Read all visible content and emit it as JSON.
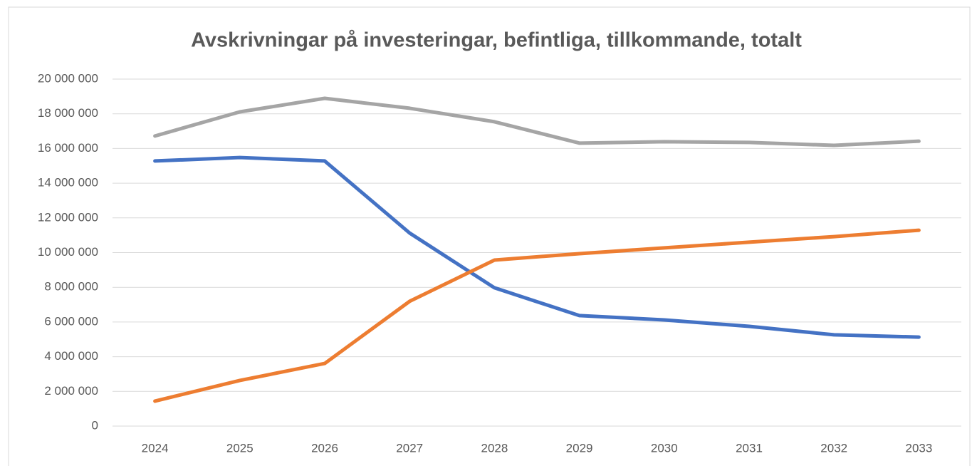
{
  "chart_data": {
    "type": "line",
    "title": "Avskrivningar på investeringar, befintliga, tillkommande, totalt",
    "categories": [
      "2024",
      "2025",
      "2026",
      "2027",
      "2028",
      "2029",
      "2030",
      "2031",
      "2032",
      "2033"
    ],
    "series": [
      {
        "color": "#4472c4",
        "values": [
          15280000,
          15480000,
          15280000,
          11130000,
          7970000,
          6370000,
          6120000,
          5750000,
          5260000,
          5130000
        ]
      },
      {
        "color": "#ed7d31",
        "values": [
          1440000,
          2630000,
          3610000,
          7190000,
          9570000,
          9940000,
          10270000,
          10600000,
          10920000,
          11290000
        ]
      },
      {
        "color": "#a5a5a5",
        "values": [
          16720000,
          18110000,
          18890000,
          18320000,
          17540000,
          16310000,
          16390000,
          16350000,
          16180000,
          16420000
        ]
      }
    ],
    "ylim": [
      0,
      20000000
    ],
    "yticks": [
      0,
      {
        "value": 2000000,
        "label": "2 000 000"
      },
      {
        "value": 4000000,
        "label": "4 000 000"
      },
      {
        "value": 6000000,
        "label": "6 000 000"
      },
      {
        "value": 8000000,
        "label": "8 000 000"
      },
      {
        "value": 10000000,
        "label": "10 000 000"
      },
      {
        "value": 12000000,
        "label": "12 000 000"
      },
      {
        "value": 14000000,
        "label": "14 000 000"
      },
      {
        "value": 16000000,
        "label": "16 000 000"
      },
      {
        "value": 18000000,
        "label": "18 000 000"
      },
      {
        "value": 20000000,
        "label": "20 000 000"
      }
    ],
    "grid": true
  }
}
